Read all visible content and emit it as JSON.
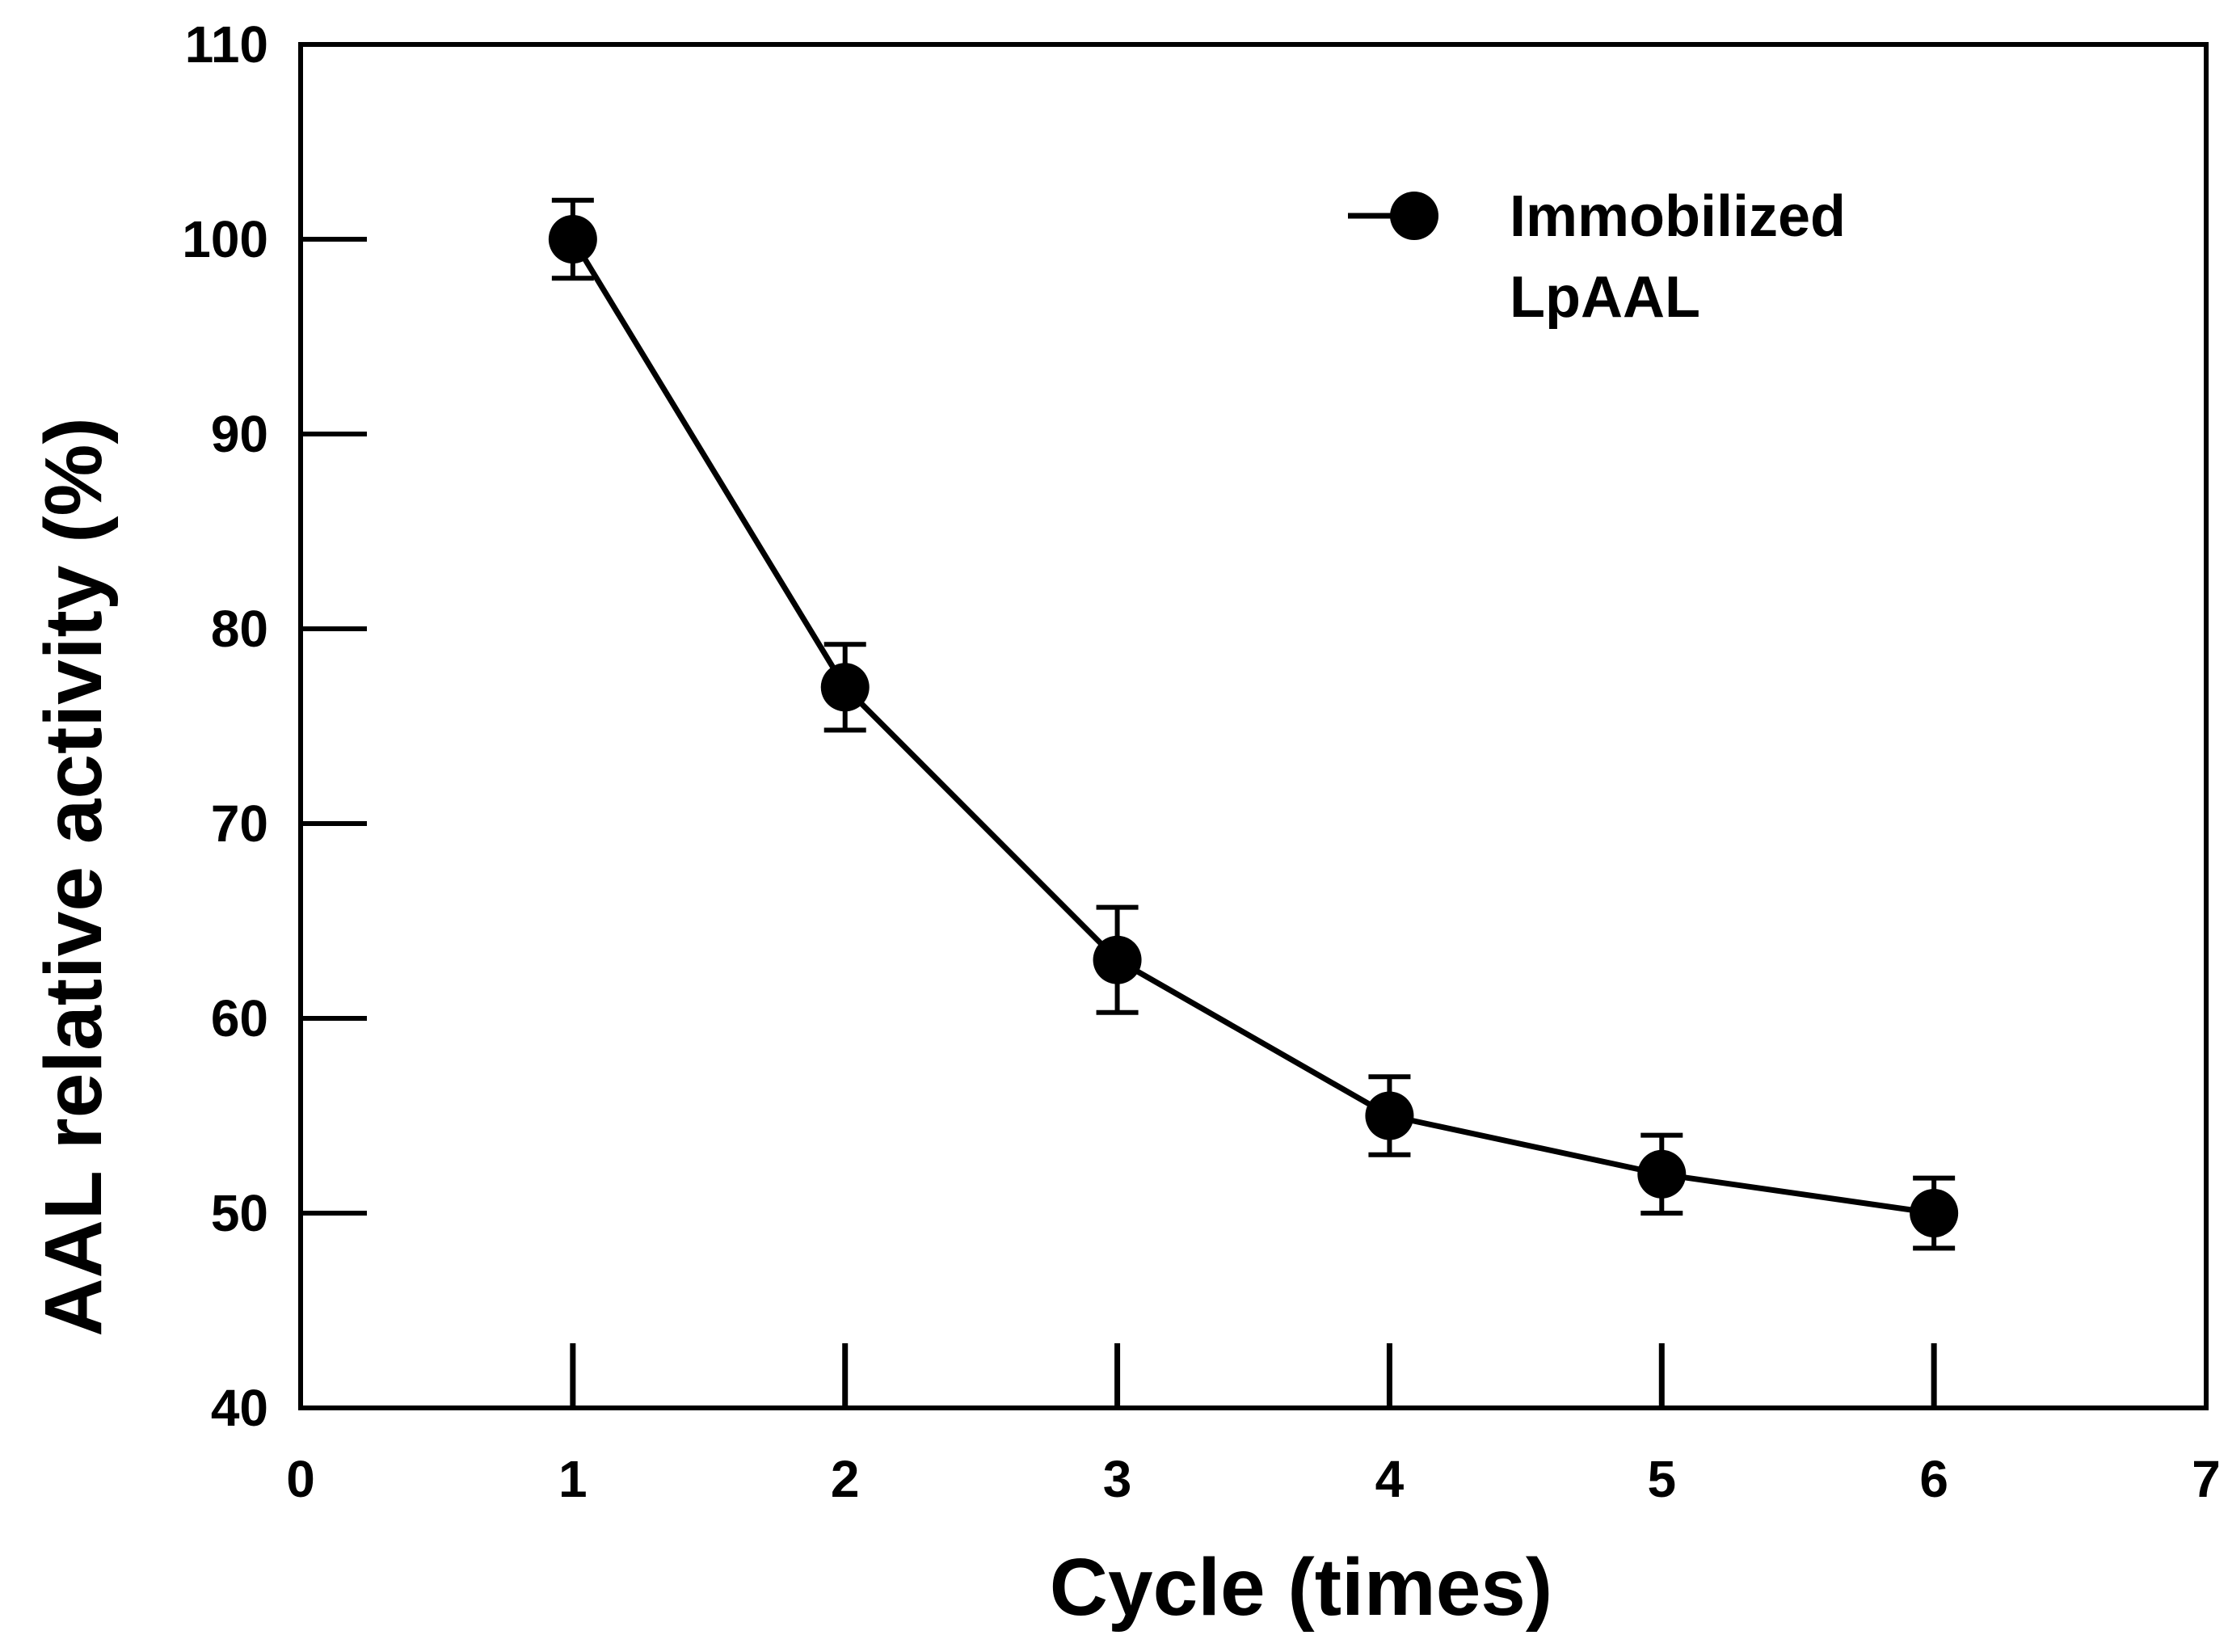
{
  "chart_data": {
    "type": "line",
    "title": "",
    "xlabel": "Cycle (times)",
    "ylabel": "AAL relative activity (%)",
    "xlim": [
      0,
      7
    ],
    "ylim": [
      40,
      110
    ],
    "xticks": [
      0,
      1,
      2,
      3,
      4,
      5,
      6,
      7
    ],
    "yticks": [
      40,
      50,
      60,
      70,
      80,
      90,
      100,
      110
    ],
    "grid": false,
    "legend_position": "top-right",
    "series": [
      {
        "name": "Immobilized LpAAL",
        "legend_lines": [
          "Immobilized",
          "LpAAL"
        ],
        "color": "#000000",
        "marker": "circle",
        "x": [
          1,
          2,
          3,
          4,
          5,
          6
        ],
        "y": [
          100,
          77,
          63,
          55,
          52,
          50
        ],
        "error": [
          2,
          2.2,
          2.7,
          2,
          2,
          1.8
        ]
      }
    ]
  }
}
